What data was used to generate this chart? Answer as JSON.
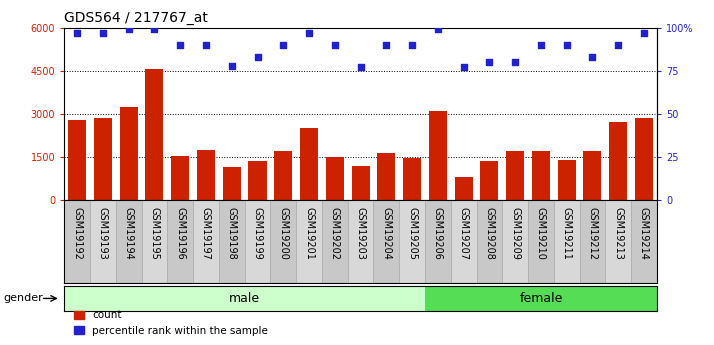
{
  "title": "GDS564 / 217767_at",
  "samples": [
    "GSM19192",
    "GSM19193",
    "GSM19194",
    "GSM19195",
    "GSM19196",
    "GSM19197",
    "GSM19198",
    "GSM19199",
    "GSM19200",
    "GSM19201",
    "GSM19202",
    "GSM19203",
    "GSM19204",
    "GSM19205",
    "GSM19206",
    "GSM19207",
    "GSM19208",
    "GSM19209",
    "GSM19210",
    "GSM19211",
    "GSM19212",
    "GSM19213",
    "GSM19214"
  ],
  "counts": [
    2800,
    2850,
    3250,
    4550,
    1550,
    1750,
    1150,
    1350,
    1700,
    2500,
    1500,
    1200,
    1650,
    1450,
    3100,
    800,
    1350,
    1700,
    1700,
    1400,
    1700,
    2700,
    2850
  ],
  "percentiles": [
    97,
    97,
    99,
    99,
    90,
    90,
    78,
    83,
    90,
    97,
    90,
    77,
    90,
    90,
    99,
    77,
    80,
    80,
    90,
    90,
    83,
    90,
    97
  ],
  "bar_color": "#cc2200",
  "dot_color": "#2222cc",
  "ylim_left": [
    0,
    6000
  ],
  "ylim_right": [
    0,
    100
  ],
  "yticks_left": [
    0,
    1500,
    3000,
    4500,
    6000
  ],
  "yticks_right": [
    0,
    25,
    50,
    75,
    100
  ],
  "ytick_labels_right": [
    "0",
    "25",
    "50",
    "75",
    "100%"
  ],
  "male_samples": 14,
  "female_samples": 9,
  "gender_label": "gender",
  "male_label": "male",
  "female_label": "female",
  "male_color": "#ccffcc",
  "female_color": "#55dd55",
  "legend_count_label": "count",
  "legend_percentile_label": "percentile rank within the sample",
  "bg_color": "#ffffff",
  "plot_bg": "#ffffff",
  "title_fontsize": 10,
  "tick_fontsize": 7,
  "col_bg_even": "#c8c8c8",
  "col_bg_odd": "#d8d8d8"
}
